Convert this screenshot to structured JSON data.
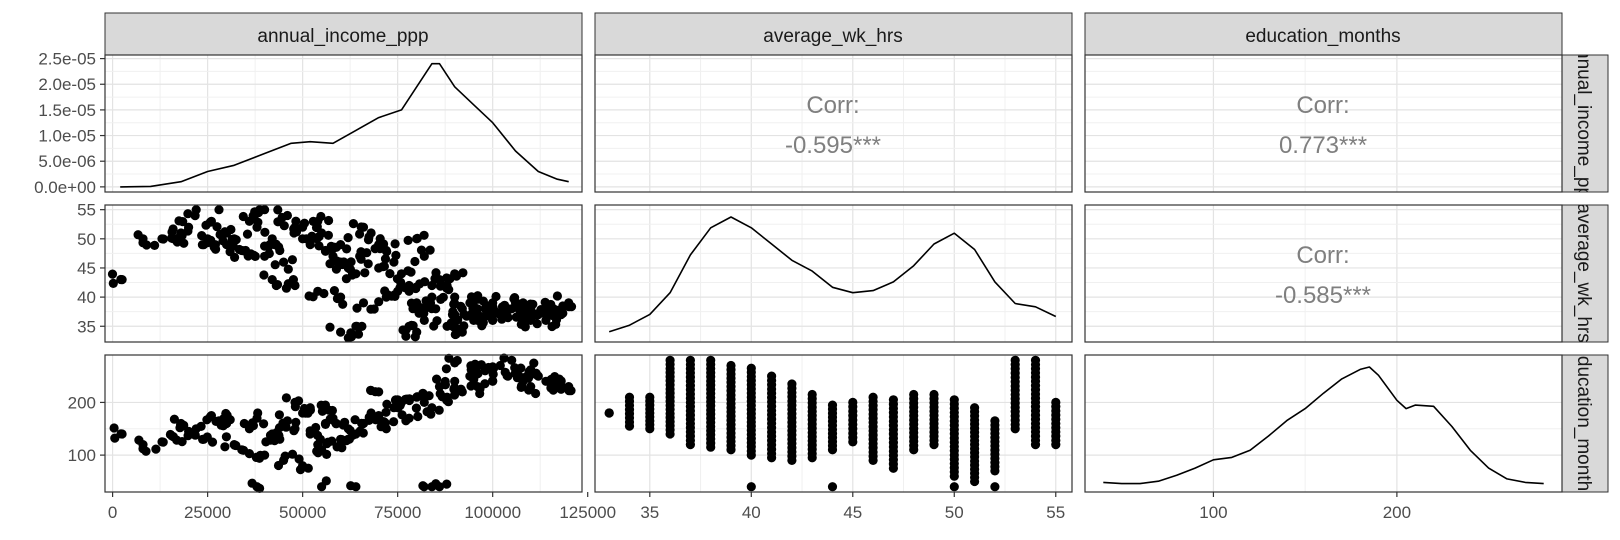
{
  "chart_data": {
    "type": "scatter",
    "variables": [
      "annual_income_ppp",
      "average_wk_hrs",
      "education_months"
    ],
    "strip_labels": {
      "top": [
        "annual_income_ppp",
        "average_wk_hrs",
        "education_months"
      ],
      "right": [
        "annual_income_ppp",
        "average_wk_hrs",
        "education_months"
      ]
    },
    "axes": {
      "annual_income_ppp": {
        "range": [
          -2000,
          123500
        ],
        "ticks": [
          0,
          25000,
          50000,
          75000,
          100000,
          125000
        ],
        "tick_labels": [
          "0",
          "25000",
          "50000",
          "75000",
          "100000",
          "125000"
        ]
      },
      "average_wk_hrs": {
        "range": [
          32.3,
          55.8
        ],
        "ticks": [
          35,
          40,
          45,
          50,
          55
        ],
        "tick_labels": [
          "35",
          "40",
          "45",
          "50",
          "55"
        ]
      },
      "education_months": {
        "range": [
          30,
          290
        ],
        "ticks": [
          100,
          200
        ],
        "tick_labels": [
          "100",
          "200"
        ]
      },
      "density_row1": {
        "range": [
          -1e-06,
          2.57e-05
        ],
        "ticks": [
          0,
          5e-06,
          1e-05,
          1.5e-05,
          2e-05,
          2.5e-05
        ],
        "tick_labels": [
          "0.0e+00",
          "5.0e-06",
          "1.0e-05",
          "1.5e-05",
          "2.0e-05",
          "2.5e-05"
        ]
      }
    },
    "correlations": [
      {
        "row": 1,
        "col": 2,
        "label": "Corr:",
        "value": "-0.595***"
      },
      {
        "row": 1,
        "col": 3,
        "label": "Corr:",
        "value": "0.773***"
      },
      {
        "row": 2,
        "col": 3,
        "label": "Corr:",
        "value": "-0.585***"
      }
    ],
    "densities": {
      "annual_income_ppp": {
        "x": [
          2000,
          10000,
          18000,
          25000,
          32000,
          40000,
          47000,
          52000,
          58000,
          64000,
          70000,
          76000,
          80000,
          84000,
          86000,
          90000,
          95000,
          100000,
          106000,
          112000,
          117000,
          120000
        ],
        "y": [
          0.0,
          1e-07,
          1e-06,
          3e-06,
          4.2e-06,
          6.5e-06,
          8.5e-06,
          8.8e-06,
          8.5e-06,
          1.1e-05,
          1.35e-05,
          1.5e-05,
          1.95e-05,
          2.4e-05,
          2.4e-05,
          1.95e-05,
          1.6e-05,
          1.25e-05,
          7e-06,
          3e-06,
          1.5e-06,
          1e-06
        ]
      },
      "average_wk_hrs": {
        "x": [
          33,
          34,
          35,
          36,
          37,
          38,
          39,
          40,
          41,
          42,
          43,
          44,
          45,
          46,
          47,
          48,
          49,
          50,
          51,
          52,
          53,
          54,
          55
        ],
        "y": [
          0.004,
          0.01,
          0.02,
          0.04,
          0.075,
          0.1,
          0.11,
          0.1,
          0.085,
          0.07,
          0.06,
          0.045,
          0.04,
          0.042,
          0.05,
          0.065,
          0.085,
          0.095,
          0.08,
          0.05,
          0.03,
          0.027,
          0.018
        ]
      },
      "education_months": {
        "x": [
          40,
          50,
          60,
          70,
          80,
          90,
          100,
          110,
          120,
          130,
          140,
          150,
          160,
          170,
          180,
          185,
          190,
          200,
          205,
          210,
          220,
          230,
          240,
          250,
          260,
          270,
          280
        ],
        "y": [
          0.0003,
          0.0002,
          0.0002,
          0.0004,
          0.0009,
          0.0015,
          0.0022,
          0.0024,
          0.003,
          0.0042,
          0.0055,
          0.0065,
          0.0078,
          0.009,
          0.0098,
          0.01,
          0.0093,
          0.0072,
          0.0065,
          0.0068,
          0.0067,
          0.005,
          0.003,
          0.0015,
          0.0006,
          0.0003,
          0.0002
        ]
      }
    },
    "scatter": {
      "income_vs_hours": {
        "x": [
          2500,
          8000,
          13000,
          16000,
          18000,
          20000,
          22000,
          24000,
          26000,
          28000,
          30000,
          32000,
          34000,
          36000,
          38000,
          40000,
          42000,
          44000,
          46000,
          48000,
          50000,
          52000,
          54000,
          56000,
          58000,
          60000,
          62000,
          64000,
          66000,
          68000,
          70000,
          72000,
          74000,
          76000,
          78000,
          80000,
          82000,
          84000,
          86000,
          88000,
          90000,
          92000,
          94000,
          96000,
          98000,
          100000,
          102000,
          104000,
          106000,
          108000,
          110000,
          112000,
          114000,
          116000,
          118000,
          120000,
          25000,
          30000,
          35000,
          40000,
          45000,
          50000,
          55000,
          60000,
          65000,
          70000,
          75000,
          80000,
          85000,
          90000,
          95000,
          100000,
          105000,
          110000,
          115000,
          42000,
          48000,
          54000,
          60000,
          66000,
          72000,
          78000,
          84000,
          90000,
          96000,
          102000,
          108000,
          114000,
          60000,
          62000,
          64000,
          78000,
          80000,
          82000,
          88000,
          92000,
          96000,
          100000
        ],
        "y": [
          43,
          50,
          50,
          50,
          51,
          52,
          55,
          49,
          53,
          55,
          51,
          50,
          48,
          53,
          52,
          55,
          50,
          48,
          54,
          52,
          50,
          49,
          53,
          48,
          47,
          46,
          45,
          44,
          52,
          51,
          49,
          48,
          46,
          44,
          42,
          50,
          47,
          40,
          43,
          42,
          40,
          38,
          39,
          37,
          38,
          36,
          37,
          38,
          39,
          36,
          38,
          37,
          36,
          38,
          37,
          39,
          50,
          49,
          48,
          47,
          46,
          52,
          51,
          49,
          47,
          45,
          41,
          39,
          38,
          37,
          36,
          37,
          38,
          36,
          37,
          43,
          42,
          41,
          40,
          39,
          40,
          41,
          42,
          44,
          36,
          37,
          39,
          38,
          34,
          33,
          35,
          35,
          34,
          36,
          35,
          34,
          38,
          39
        ],
        "range_x": "annual_income_ppp",
        "range_y": "average_wk_hrs"
      },
      "income_vs_education": {
        "x": [
          2500,
          8000,
          13000,
          16000,
          18000,
          20000,
          22000,
          24000,
          26000,
          28000,
          30000,
          32000,
          34000,
          36000,
          38000,
          40000,
          42000,
          44000,
          46000,
          48000,
          50000,
          52000,
          54000,
          56000,
          58000,
          60000,
          62000,
          64000,
          66000,
          68000,
          70000,
          72000,
          74000,
          76000,
          78000,
          80000,
          82000,
          84000,
          86000,
          88000,
          90000,
          92000,
          94000,
          96000,
          98000,
          100000,
          102000,
          104000,
          106000,
          108000,
          110000,
          112000,
          114000,
          116000,
          118000,
          120000,
          38000,
          55000,
          64000,
          84000,
          86000,
          45000,
          50000,
          55000,
          60000,
          48000,
          52000,
          56000,
          70000,
          75000,
          90000,
          95000,
          105000,
          110000
        ],
        "y": [
          140,
          120,
          125,
          135,
          160,
          145,
          150,
          130,
          175,
          165,
          160,
          120,
          110,
          150,
          170,
          100,
          140,
          130,
          165,
          150,
          180,
          140,
          120,
          160,
          170,
          130,
          150,
          140,
          160,
          180,
          175,
          150,
          190,
          200,
          170,
          210,
          200,
          190,
          230,
          210,
          240,
          220,
          250,
          230,
          260,
          240,
          270,
          250,
          255,
          240,
          230,
          250,
          240,
          235,
          225,
          230,
          40,
          40,
          40,
          40,
          40,
          90,
          80,
          110,
          120,
          200,
          190,
          195,
          220,
          205,
          275,
          265,
          280,
          262
        ],
        "range_x": "annual_income_ppp",
        "range_y": "education_months"
      },
      "hours_vs_education": {
        "columns": [
          {
            "x": 33,
            "ymin": 180,
            "ymax": 180
          },
          {
            "x": 34,
            "ymin": 155,
            "ymax": 210
          },
          {
            "x": 35,
            "ymin": 150,
            "ymax": 210
          },
          {
            "x": 36,
            "ymin": 140,
            "ymax": 280
          },
          {
            "x": 37,
            "ymin": 120,
            "ymax": 280
          },
          {
            "x": 38,
            "ymin": 115,
            "ymax": 280
          },
          {
            "x": 39,
            "ymin": 110,
            "ymax": 270
          },
          {
            "x": 40,
            "ymin": 100,
            "ymax": 265
          },
          {
            "x": 41,
            "ymin": 95,
            "ymax": 250
          },
          {
            "x": 42,
            "ymin": 90,
            "ymax": 235
          },
          {
            "x": 43,
            "ymin": 95,
            "ymax": 215
          },
          {
            "x": 44,
            "ymin": 110,
            "ymax": 195
          },
          {
            "x": 45,
            "ymin": 125,
            "ymax": 200
          },
          {
            "x": 46,
            "ymin": 90,
            "ymax": 210
          },
          {
            "x": 47,
            "ymin": 75,
            "ymax": 205
          },
          {
            "x": 48,
            "ymin": 110,
            "ymax": 215
          },
          {
            "x": 49,
            "ymin": 120,
            "ymax": 215
          },
          {
            "x": 50,
            "ymin": 60,
            "ymax": 205
          },
          {
            "x": 51,
            "ymin": 50,
            "ymax": 190
          },
          {
            "x": 52,
            "ymin": 70,
            "ymax": 165
          },
          {
            "x": 53,
            "ymin": 150,
            "ymax": 280
          },
          {
            "x": 54,
            "ymin": 120,
            "ymax": 280
          },
          {
            "x": 55,
            "ymin": 120,
            "ymax": 200
          }
        ],
        "extra_points": [
          {
            "x": 40,
            "y": 40
          },
          {
            "x": 44,
            "y": 40
          },
          {
            "x": 50,
            "y": 40
          },
          {
            "x": 52,
            "y": 40
          }
        ],
        "range_x": "average_wk_hrs",
        "range_y": "education_months"
      }
    }
  }
}
